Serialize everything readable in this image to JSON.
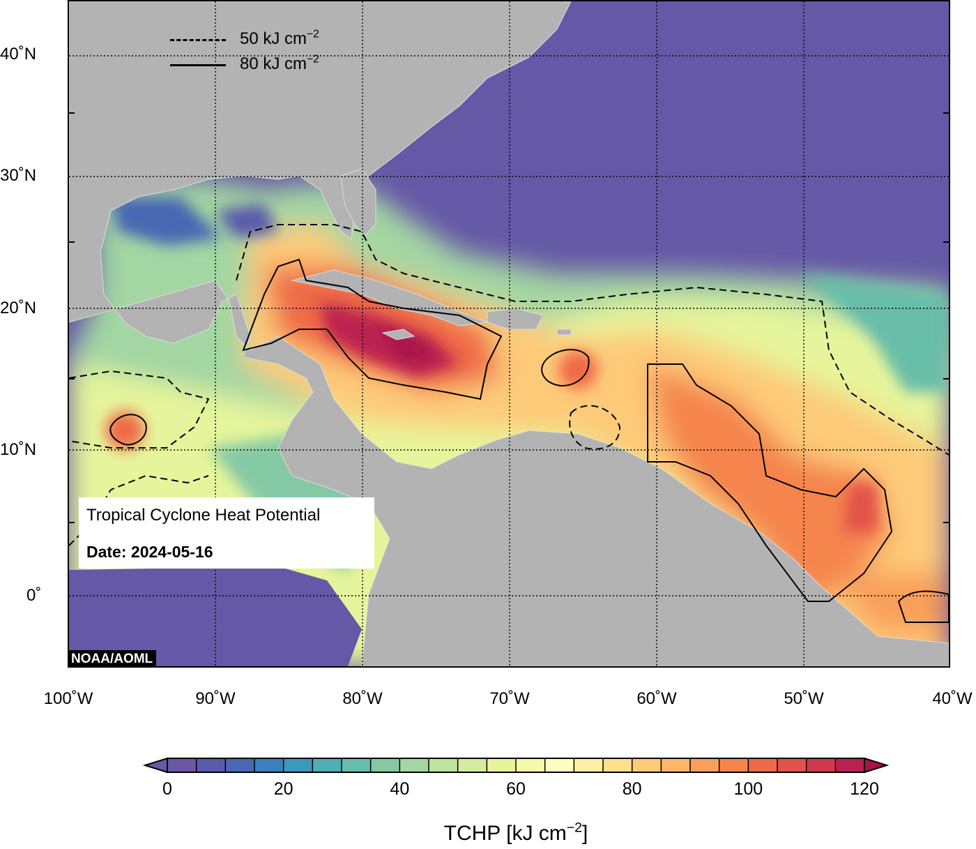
{
  "map": {
    "title": "Tropical Cyclone Heat Potential",
    "date_label": "Date: 2024-05-16",
    "credit": "NOAA/AOML",
    "extent": {
      "lon_min": -100,
      "lon_max": -40,
      "lat_min": -5,
      "lat_max": 44
    },
    "lat_labels": [
      "40˚N",
      "30˚N",
      "20˚N",
      "10˚N",
      "0˚"
    ],
    "lon_labels": [
      "100˚W",
      "90˚W",
      "80˚W",
      "70˚W",
      "60˚W",
      "50˚W",
      "40˚W"
    ],
    "legend": {
      "dashed": {
        "text": "50 kJ cm",
        "exp": "−2"
      },
      "solid": {
        "text": "80 kJ cm",
        "exp": "−2"
      }
    },
    "colors": {
      "ocean_low": "#6558a6",
      "land": "#b3b3b3",
      "high": "#a8124d"
    }
  },
  "colorbar": {
    "ticks": [
      "0",
      "20",
      "40",
      "60",
      "80",
      "100",
      "120"
    ],
    "min": 0,
    "max": 120,
    "step": 5,
    "colors": [
      "#6a57a5",
      "#5a5aab",
      "#4a67b3",
      "#3e80bb",
      "#3d98bd",
      "#4eaeb4",
      "#67bda9",
      "#85c9a4",
      "#a3d6a2",
      "#bde3a1",
      "#d3ec9e",
      "#e6f59b",
      "#f4fba8",
      "#fefebd",
      "#feefa4",
      "#fee08b",
      "#fdca79",
      "#fdb567",
      "#f99f5a",
      "#f5844d",
      "#ef6a46",
      "#e2524a",
      "#d0394d",
      "#bb2150",
      "#a8124d"
    ],
    "label": "TCHP [kJ cm",
    "label_exp": "−2",
    "label_close": "]"
  }
}
